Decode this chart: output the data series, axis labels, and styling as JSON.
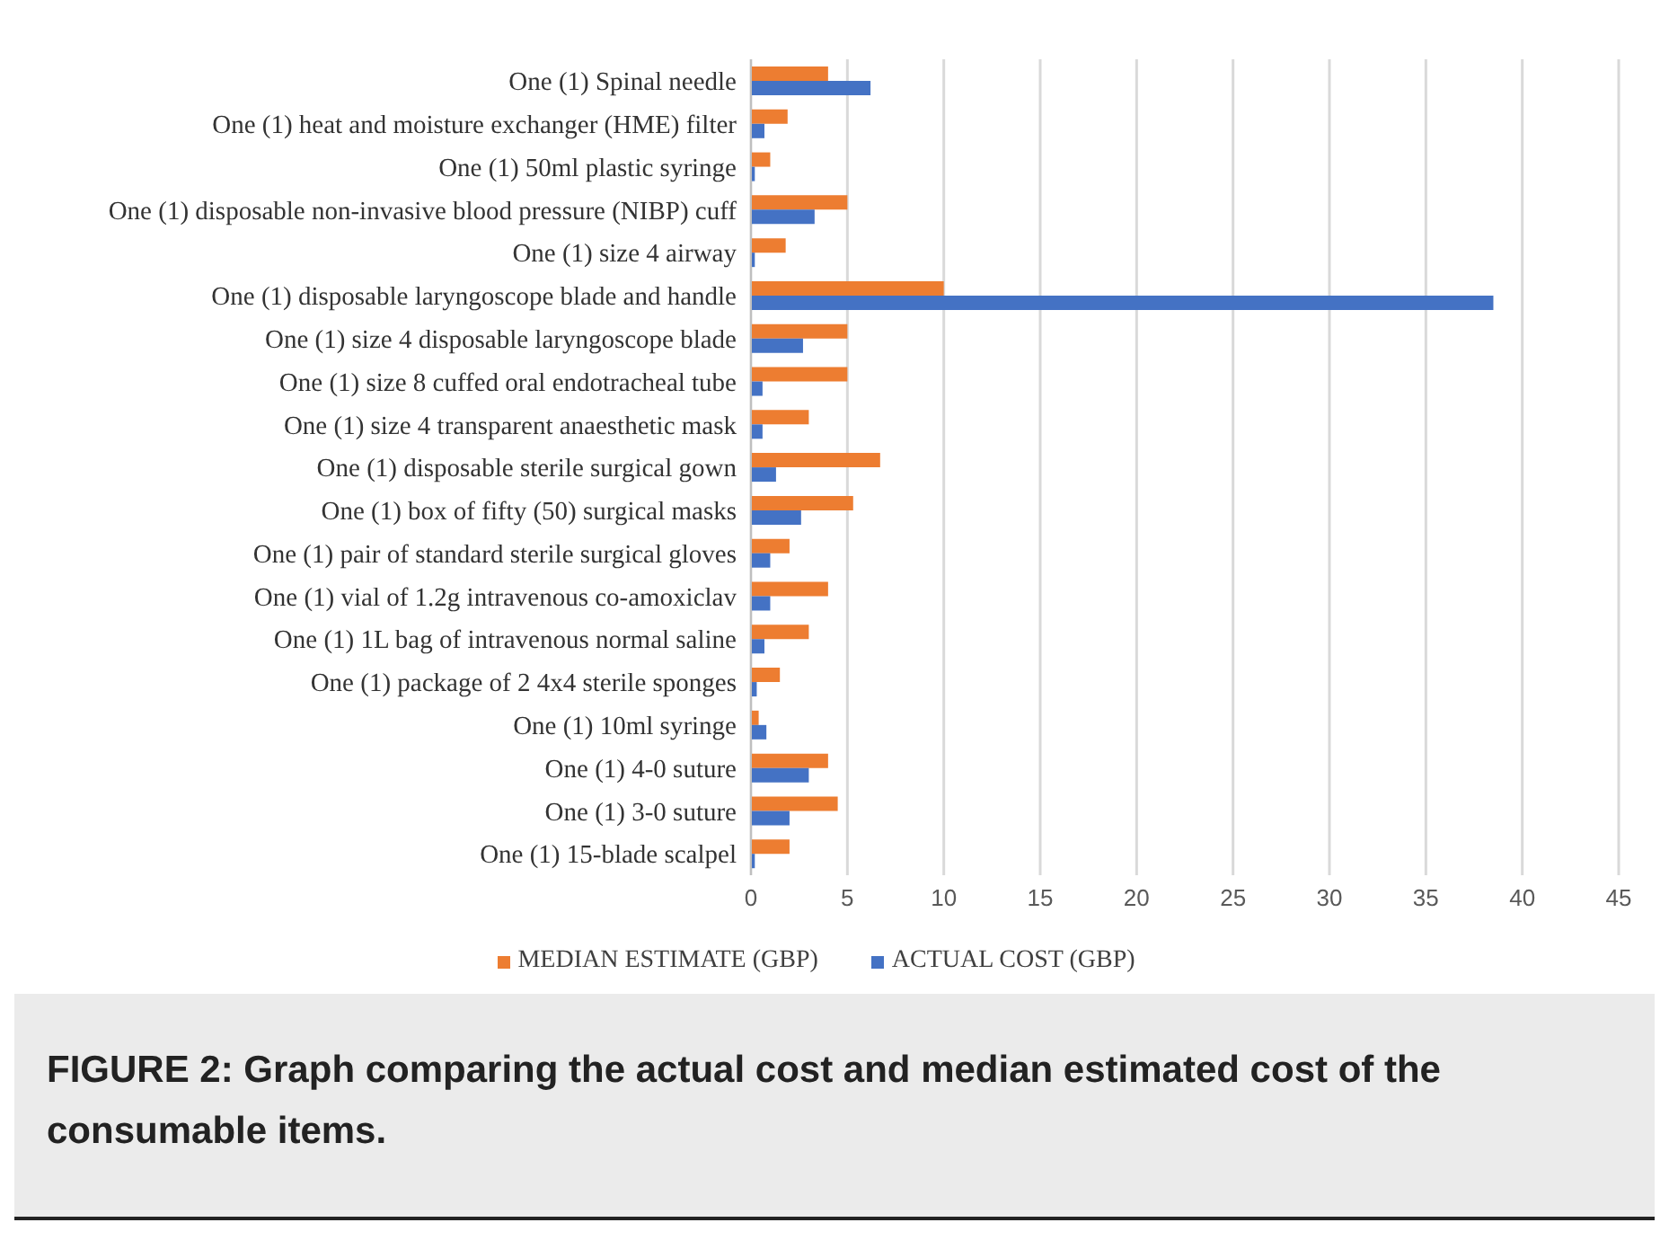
{
  "chart_data": {
    "type": "bar",
    "orientation": "horizontal",
    "title": "FIGURE 2: Graph comparing the actual cost and median estimated cost of the consumable items.",
    "categories": [
      "One (1) Spinal needle",
      "One (1) heat and moisture exchanger (HME) filter",
      "One (1) 50ml plastic syringe",
      "One (1) disposable non-invasive blood pressure (NIBP) cuff",
      "One (1) size 4 airway",
      "One (1) disposable laryngoscope blade and handle",
      "One (1) size 4 disposable laryngoscope blade",
      "One (1) size 8 cuffed oral endotracheal tube",
      "One (1) size 4 transparent anaesthetic mask",
      "One (1) disposable sterile surgical gown",
      "One (1) box of fifty (50) surgical masks",
      "One (1) pair of standard sterile surgical gloves",
      "One (1) vial of 1.2g intravenous co-amoxiclav",
      "One (1) 1L bag of intravenous normal saline",
      "One (1) package of 2 4x4 sterile sponges",
      "One (1) 10ml syringe",
      "One (1) 4-0 suture",
      "One (1) 3-0 suture",
      "One (1) 15-blade scalpel"
    ],
    "series": [
      {
        "name": "MEDIAN ESTIMATE (GBP)",
        "color": "#ed7d31",
        "values": [
          4,
          1.9,
          1,
          5,
          1.8,
          10,
          5,
          5,
          3,
          6.7,
          5.3,
          2,
          4,
          3,
          1.5,
          0.4,
          4,
          4.5,
          2
        ]
      },
      {
        "name": "ACTUAL COST (GBP)",
        "color": "#4472c4",
        "values": [
          6.2,
          0.7,
          0.2,
          3.3,
          0.2,
          38.5,
          2.7,
          0.6,
          0.6,
          1.3,
          2.6,
          1,
          1,
          0.7,
          0.3,
          0.8,
          3,
          2,
          0.2
        ]
      }
    ],
    "xlim": [
      0,
      45
    ],
    "xticks": [
      0,
      5,
      10,
      15,
      20,
      25,
      30,
      35,
      40,
      45
    ],
    "grid": "x",
    "legend": "bottom"
  }
}
